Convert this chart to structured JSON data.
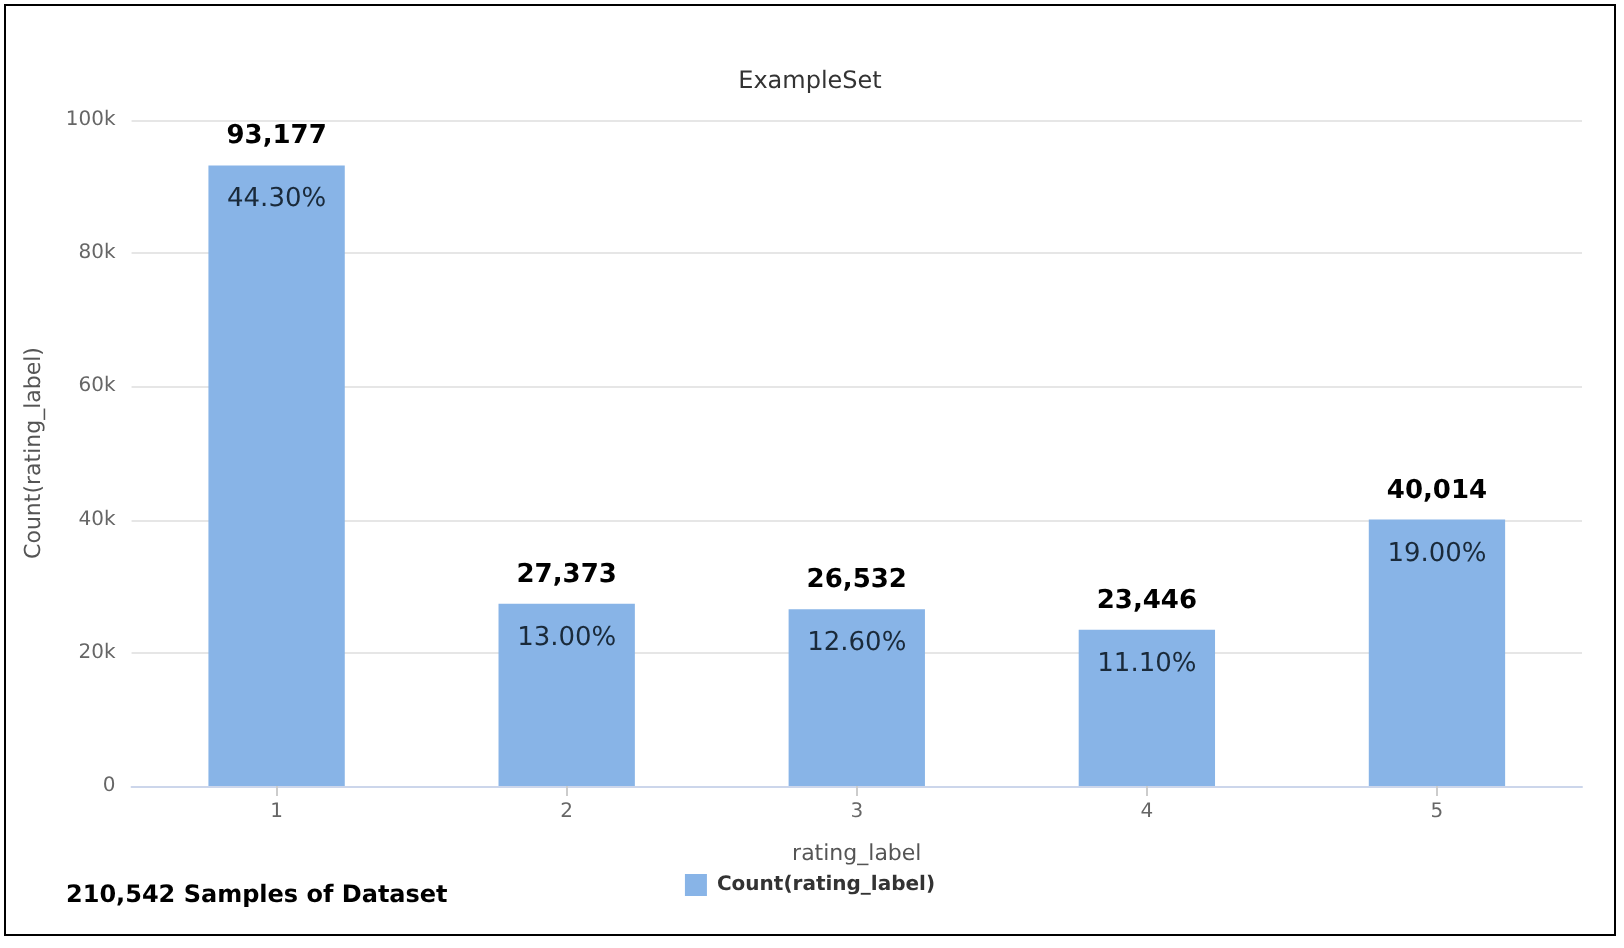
{
  "chart_data": {
    "type": "bar",
    "title": "ExampleSet",
    "xlabel": "rating_label",
    "ylabel": "Count(rating_label)",
    "categories": [
      "1",
      "2",
      "3",
      "4",
      "5"
    ],
    "series": [
      {
        "name": "Count(rating_label)",
        "color": "#88b4e7",
        "values": [
          93177,
          27373,
          26532,
          23446,
          40014
        ]
      }
    ],
    "value_labels": [
      "93,177",
      "27,373",
      "26,532",
      "23,446",
      "40,014"
    ],
    "ylim": [
      0,
      100000
    ],
    "yticks": [
      {
        "value": 0,
        "label": "0"
      },
      {
        "value": 20000,
        "label": "20k"
      },
      {
        "value": 40000,
        "label": "40k"
      },
      {
        "value": 60000,
        "label": "60k"
      },
      {
        "value": 80000,
        "label": "80k"
      },
      {
        "value": 100000,
        "label": "100k"
      }
    ],
    "grid": "y",
    "legend": "bottom",
    "annotations": [
      {
        "text": "44.30%",
        "x": "1",
        "y": 93177
      },
      {
        "text": "13.00%",
        "x": "2",
        "y": 27373
      },
      {
        "text": "12.60%",
        "x": "3",
        "y": 26532
      },
      {
        "text": "11.10%",
        "x": "4",
        "y": 23446
      },
      {
        "text": "19.00%",
        "x": "5",
        "y": 40014
      },
      "210,542 Samples of Dataset"
    ]
  }
}
